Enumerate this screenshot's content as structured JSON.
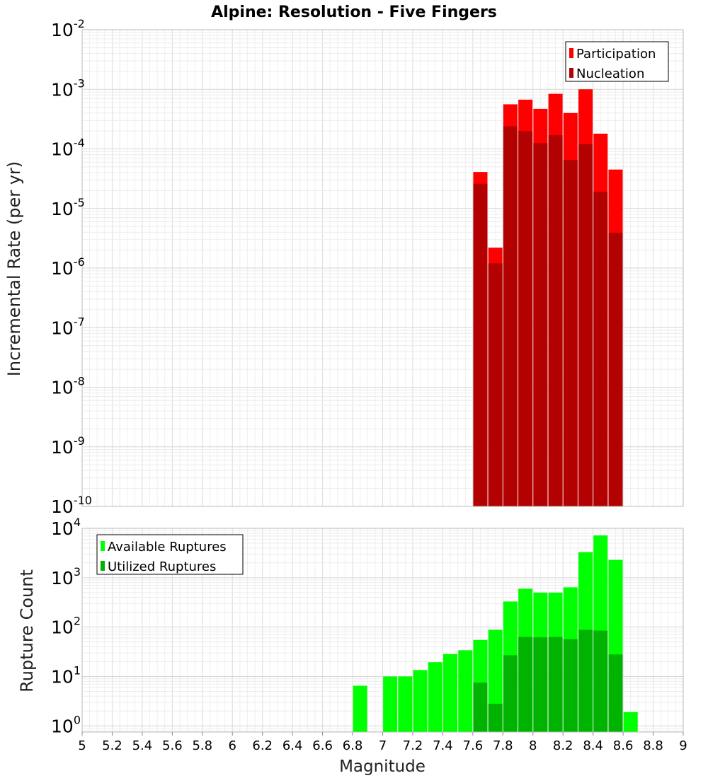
{
  "chart_data": [
    {
      "type": "bar",
      "title": "Alpine: Resolution - Five Fingers",
      "xlabel": "",
      "ylabel": "Incremental Rate (per yr)",
      "yscale": "log",
      "xlim": [
        5,
        9
      ],
      "ylim": [
        1e-10,
        0.01
      ],
      "grid": true,
      "legend_position": "top-right",
      "x": [
        7.65,
        7.75,
        7.85,
        7.95,
        8.05,
        8.15,
        8.25,
        8.35,
        8.45,
        8.55
      ],
      "series": [
        {
          "name": "Participation",
          "color": "#ff0000",
          "values": [
            4.1e-05,
            2.2e-06,
            0.00056,
            0.00067,
            0.00047,
            0.00084,
            0.0004,
            0.001,
            0.00018,
            4.5e-05
          ]
        },
        {
          "name": "Nucleation",
          "color": "#b30000",
          "values": [
            2.6e-05,
            1.2e-06,
            0.00024,
            0.0002,
            0.000125,
            0.00017,
            6.5e-05,
            0.00012,
            1.9e-05,
            3.9e-06
          ]
        }
      ]
    },
    {
      "type": "bar",
      "title": "",
      "xlabel": "Magnitude",
      "ylabel": "Rupture Count",
      "yscale": "log",
      "xlim": [
        5,
        9
      ],
      "ylim": [
        0.75,
        10000
      ],
      "grid": true,
      "legend_position": "top-left",
      "x": [
        6.85,
        7.05,
        7.15,
        7.25,
        7.35,
        7.45,
        7.55,
        7.65,
        7.75,
        7.85,
        7.95,
        8.05,
        8.15,
        8.25,
        8.35,
        8.45,
        8.55,
        8.65
      ],
      "series": [
        {
          "name": "Available Ruptures",
          "color": "#00ff00",
          "values": [
            6.5,
            10,
            10,
            13.5,
            19.5,
            28.5,
            34,
            55,
            88,
            330,
            600,
            500,
            500,
            640,
            3300,
            7200,
            2300,
            1.9
          ]
        },
        {
          "name": "Utilized Ruptures",
          "color": "#00b300",
          "values": [
            0,
            0,
            0,
            0,
            0,
            0,
            0,
            7.5,
            2.8,
            27,
            63,
            62,
            63,
            57,
            88,
            85,
            28,
            0
          ]
        }
      ]
    }
  ],
  "x_ticks": [
    5,
    5.2,
    5.4,
    5.6,
    5.8,
    6,
    6.2,
    6.4,
    6.6,
    6.8,
    7,
    7.2,
    7.4,
    7.6,
    7.8,
    8,
    8.2,
    8.4,
    8.6,
    8.8,
    9
  ],
  "top_y_exponents": [
    -10,
    -9,
    -8,
    -7,
    -6,
    -5,
    -4,
    -3,
    -2
  ],
  "bottom_y_exponents": [
    0,
    1,
    2,
    3,
    4
  ]
}
